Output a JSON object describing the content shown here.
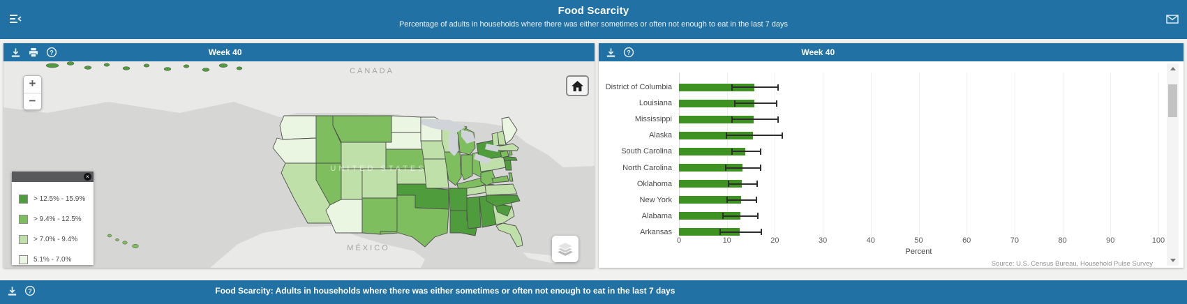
{
  "app": {
    "header": {
      "title": "Food Scarcity",
      "subtitle": "Percentage of adults in households where there was either sometimes or often not enough to eat in the last 7 days"
    },
    "bottom_bar": {
      "title": "Food Scarcity: Adults in households where there was either sometimes or often not enough to eat in the last 7 days"
    }
  },
  "icons": {
    "close": "×",
    "question_mark": "?"
  },
  "colors": {
    "header_blue": "#2171A4",
    "bar_green": "#3E9222",
    "map_ocean": "#D6D6D4",
    "map_land": "#E9E9E7",
    "category_colors": {
      "1": "#EAF6E2",
      "2": "#C0E0AA",
      "3": "#7EBE5F",
      "4": "#4E9C3B"
    }
  },
  "map_panel": {
    "title": "Week 40",
    "controls": {
      "zoom_in": "+",
      "zoom_out": "−"
    },
    "labels": {
      "canada": "CANADA",
      "united_states": "UNITED STATES",
      "mexico": "MÉXICO"
    },
    "legend": {
      "items": [
        {
          "label": "> 12.5% - 15.9%",
          "category": 4
        },
        {
          "label": "> 9.4% - 12.5%",
          "category": 3
        },
        {
          "label": "> 7.0% - 9.4%",
          "category": 2
        },
        {
          "label": "5.1% - 7.0%",
          "category": 1
        }
      ]
    },
    "state_categories": {
      "WA": 1,
      "OR": 1,
      "CA": 2,
      "NV": 3,
      "ID": 3,
      "MT": 3,
      "WY": 2,
      "UT": 2,
      "CO": 2,
      "AZ": 1,
      "NM": 3,
      "TX": 3,
      "OK": 4,
      "KS": 2,
      "NE": 3,
      "ND": 1,
      "SD": 1,
      "MN": 1,
      "IA": 2,
      "MO": 2,
      "WI": 2,
      "IL": 3,
      "MI": 3,
      "IN": 3,
      "OH": 3,
      "KY": 3,
      "TN": 2,
      "AR": 4,
      "LA": 4,
      "MS": 4,
      "AL": 4,
      "GA": 2,
      "FL": 2,
      "SC": 4,
      "NC": 4,
      "VA": 2,
      "WV": 3,
      "MD": 3,
      "DE": 3,
      "PA": 2,
      "NJ": 4,
      "NY": 4,
      "CT": 3,
      "RI": 3,
      "MA": 2,
      "VT": 2,
      "NH": 2,
      "ME": 1,
      "AK": 4,
      "HI": 3
    }
  },
  "chart_panel": {
    "title": "Week 40",
    "source": "Source: U.S. Census Bureau, Household Pulse Survey"
  },
  "chart_data": {
    "type": "bar",
    "orientation": "horizontal",
    "title": "Week 40",
    "categories": [
      "District of Columbia",
      "Louisiana",
      "Mississippi",
      "Alaska",
      "South Carolina",
      "North Carolina",
      "Oklahoma",
      "New York",
      "Alabama",
      "Arkansas"
    ],
    "values": [
      15.7,
      15.7,
      15.6,
      15.4,
      13.8,
      13.2,
      13.1,
      12.9,
      12.8,
      12.7
    ],
    "error_low": [
      11.1,
      11.6,
      11.0,
      9.9,
      11.1,
      9.8,
      10.4,
      10.1,
      9.2,
      8.6
    ],
    "error_high": [
      20.7,
      20.4,
      20.7,
      21.5,
      17.1,
      17.0,
      16.3,
      16.1,
      16.5,
      17.2
    ],
    "xlabel": "Percent",
    "xlim": [
      0,
      100
    ],
    "xticks": [
      0,
      10,
      20,
      30,
      40,
      50,
      60,
      70,
      80,
      90,
      100
    ],
    "grid": true,
    "bar_color": "#3E9222",
    "legend_position": "none"
  }
}
